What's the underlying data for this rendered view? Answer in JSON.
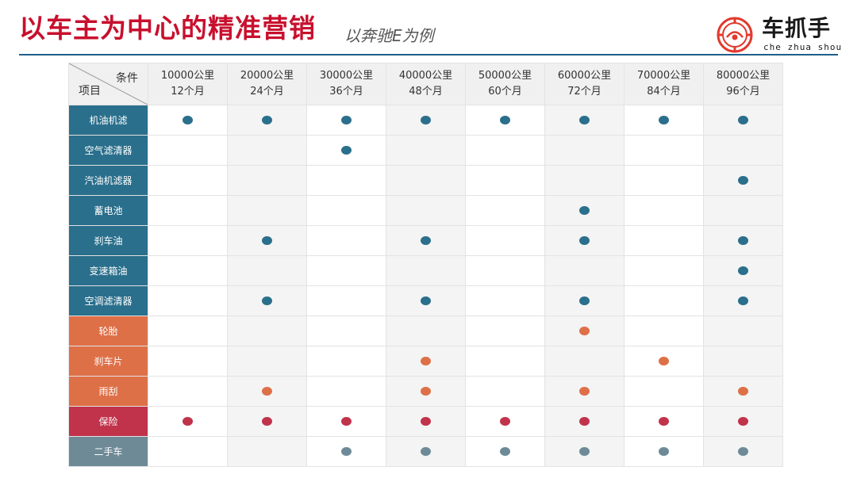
{
  "header": {
    "title": "以车主为中心的精准营销",
    "subtitle": "以奔驰E为例"
  },
  "logo": {
    "name": "车抓手",
    "pinyin": "che zhua shou",
    "icon": "steering-wheel-logo-icon",
    "color": "#e23a2e"
  },
  "table": {
    "corner": {
      "condition_label": "条件",
      "item_label": "项目"
    },
    "columns": [
      {
        "km": "10000公里",
        "months": "12个月"
      },
      {
        "km": "20000公里",
        "months": "24个月"
      },
      {
        "km": "30000公里",
        "months": "36个月"
      },
      {
        "km": "40000公里",
        "months": "48个月"
      },
      {
        "km": "50000公里",
        "months": "60个月"
      },
      {
        "km": "60000公里",
        "months": "72个月"
      },
      {
        "km": "70000公里",
        "months": "84个月"
      },
      {
        "km": "80000公里",
        "months": "96个月"
      }
    ],
    "rows": [
      {
        "label": "机油机滤",
        "color": "#2a6f8c",
        "marks": [
          1,
          1,
          1,
          1,
          1,
          1,
          1,
          1
        ]
      },
      {
        "label": "空气滤清器",
        "color": "#2a6f8c",
        "marks": [
          0,
          0,
          1,
          0,
          0,
          0,
          0,
          0
        ]
      },
      {
        "label": "汽油机滤器",
        "color": "#2a6f8c",
        "marks": [
          0,
          0,
          0,
          0,
          0,
          0,
          0,
          1
        ]
      },
      {
        "label": "蓄电池",
        "color": "#2a6f8c",
        "marks": [
          0,
          0,
          0,
          0,
          0,
          1,
          0,
          0
        ]
      },
      {
        "label": "刹车油",
        "color": "#2a6f8c",
        "marks": [
          0,
          1,
          0,
          1,
          0,
          1,
          0,
          1
        ]
      },
      {
        "label": "变速箱油",
        "color": "#2a6f8c",
        "marks": [
          0,
          0,
          0,
          0,
          0,
          0,
          0,
          1
        ]
      },
      {
        "label": "空调滤清器",
        "color": "#2a6f8c",
        "marks": [
          0,
          1,
          0,
          1,
          0,
          1,
          0,
          1
        ]
      },
      {
        "label": "轮胎",
        "color": "#de7048",
        "marks": [
          0,
          0,
          0,
          0,
          0,
          1,
          0,
          0
        ]
      },
      {
        "label": "刹车片",
        "color": "#de7048",
        "marks": [
          0,
          0,
          0,
          1,
          0,
          0,
          1,
          0
        ]
      },
      {
        "label": "雨刮",
        "color": "#de7048",
        "marks": [
          0,
          1,
          0,
          1,
          0,
          1,
          0,
          1
        ]
      },
      {
        "label": "保险",
        "color": "#c0334b",
        "marks": [
          1,
          1,
          1,
          1,
          1,
          1,
          1,
          1
        ]
      },
      {
        "label": "二手车",
        "color": "#6e8a97",
        "marks": [
          0,
          0,
          1,
          1,
          1,
          1,
          1,
          1
        ]
      }
    ],
    "alt_column_bg": "#f4f4f4"
  }
}
